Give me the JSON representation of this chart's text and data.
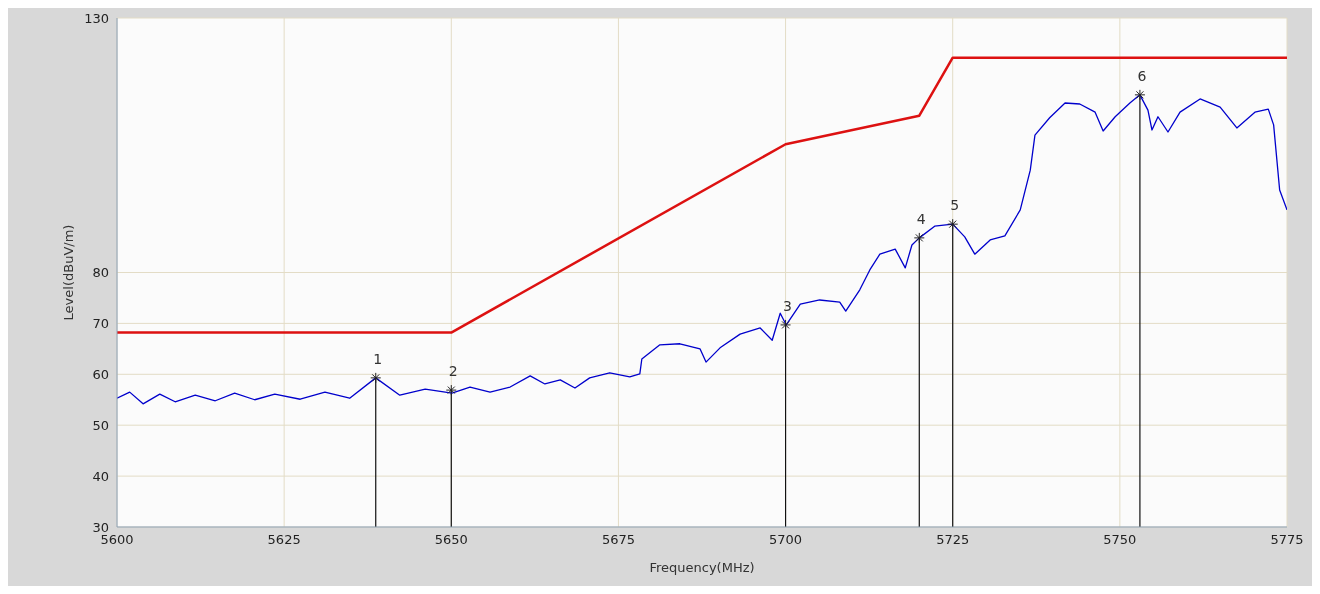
{
  "chart_data": {
    "type": "line",
    "xlabel": "Frequency(MHz)",
    "ylabel": "Level(dBuV/m)",
    "xlim": [
      5600,
      5775
    ],
    "xticks": [
      5600,
      5625,
      5650,
      5675,
      5700,
      5725,
      5750,
      5775
    ],
    "ylim": [
      30,
      130
    ],
    "yticks": [
      30,
      40,
      50,
      60,
      70,
      80,
      130
    ],
    "grid": true,
    "line_style": "solid",
    "series": [
      {
        "color": "#0000cc",
        "x": [
          5600.0,
          5601.9,
          5603.9,
          5606.4,
          5608.7,
          5611.7,
          5614.7,
          5617.6,
          5620.6,
          5623.6,
          5627.4,
          5631.1,
          5634.8,
          5638.7,
          5642.3,
          5646.1,
          5650.1,
          5652.8,
          5655.8,
          5658.8,
          5661.8,
          5664.0,
          5666.3,
          5668.5,
          5670.7,
          5673.7,
          5676.7,
          5678.2,
          5678.5,
          5681.2,
          5684.2,
          5687.2,
          5688.1,
          5690.2,
          5693.2,
          5696.2,
          5698.0,
          5699.2,
          5700.1,
          5702.2,
          5705.1,
          5708.1,
          5709.0,
          5711.1,
          5712.6,
          5714.1,
          5716.4,
          5717.9,
          5718.9,
          5720.0,
          5722.3,
          5725.0,
          5726.8,
          5728.3,
          5730.6,
          5732.8,
          5735.1,
          5736.6,
          5737.3,
          5739.5,
          5741.8,
          5744.0,
          5746.3,
          5747.5,
          5749.3,
          5751.5,
          5753.0,
          5754.2,
          5754.8,
          5755.7,
          5757.2,
          5759.0,
          5762.0,
          5765.0,
          5767.5,
          5770.2,
          5772.2,
          5773.0,
          5773.9,
          5775.0
        ],
        "values": [
          55.3,
          56.5,
          54.2,
          56.1,
          54.6,
          55.9,
          54.8,
          56.3,
          55.0,
          56.1,
          55.1,
          56.5,
          55.3,
          59.3,
          55.9,
          57.1,
          56.3,
          57.5,
          56.5,
          57.5,
          59.7,
          58.1,
          58.9,
          57.3,
          59.3,
          60.3,
          59.5,
          60.1,
          63.0,
          65.8,
          66.0,
          65.0,
          62.4,
          65.2,
          67.9,
          69.1,
          66.7,
          72.0,
          69.7,
          73.8,
          74.6,
          74.2,
          72.4,
          76.6,
          80.5,
          83.6,
          84.6,
          80.9,
          85.4,
          86.8,
          89.1,
          89.5,
          87.0,
          83.6,
          86.4,
          87.2,
          92.3,
          100.1,
          107.0,
          110.4,
          113.3,
          113.1,
          111.5,
          107.8,
          110.6,
          113.3,
          114.9,
          111.9,
          108.0,
          110.6,
          107.6,
          111.5,
          114.1,
          112.5,
          108.4,
          111.5,
          112.1,
          109.0,
          96.2,
          92.3
        ]
      },
      {
        "color": "#dd1111",
        "x": [
          5600,
          5650,
          5700,
          5720,
          5725,
          5775
        ],
        "values": [
          68.2,
          68.2,
          105.2,
          110.8,
          122.2,
          122.2
        ]
      }
    ],
    "ref_lines": [
      {
        "axis": "x",
        "value": 5638.7,
        "color": "#111111"
      },
      {
        "axis": "x",
        "value": 5650.0,
        "color": "#111111"
      },
      {
        "axis": "x",
        "value": 5700.0,
        "color": "#111111"
      },
      {
        "axis": "x",
        "value": 5720.0,
        "color": "#111111"
      },
      {
        "axis": "x",
        "value": 5725.0,
        "color": "#111111"
      },
      {
        "axis": "x",
        "value": 5753.0,
        "color": "#111111"
      }
    ],
    "annotations": [
      {
        "text": "1",
        "x": 5638.7,
        "y": 59.3
      },
      {
        "text": "2",
        "x": 5650.0,
        "y": 56.9
      },
      {
        "text": "3",
        "x": 5700.0,
        "y": 69.7
      },
      {
        "text": "4",
        "x": 5720.0,
        "y": 86.8
      },
      {
        "text": "5",
        "x": 5725.0,
        "y": 89.5
      },
      {
        "text": "6",
        "x": 5753.0,
        "y": 114.9
      }
    ]
  }
}
